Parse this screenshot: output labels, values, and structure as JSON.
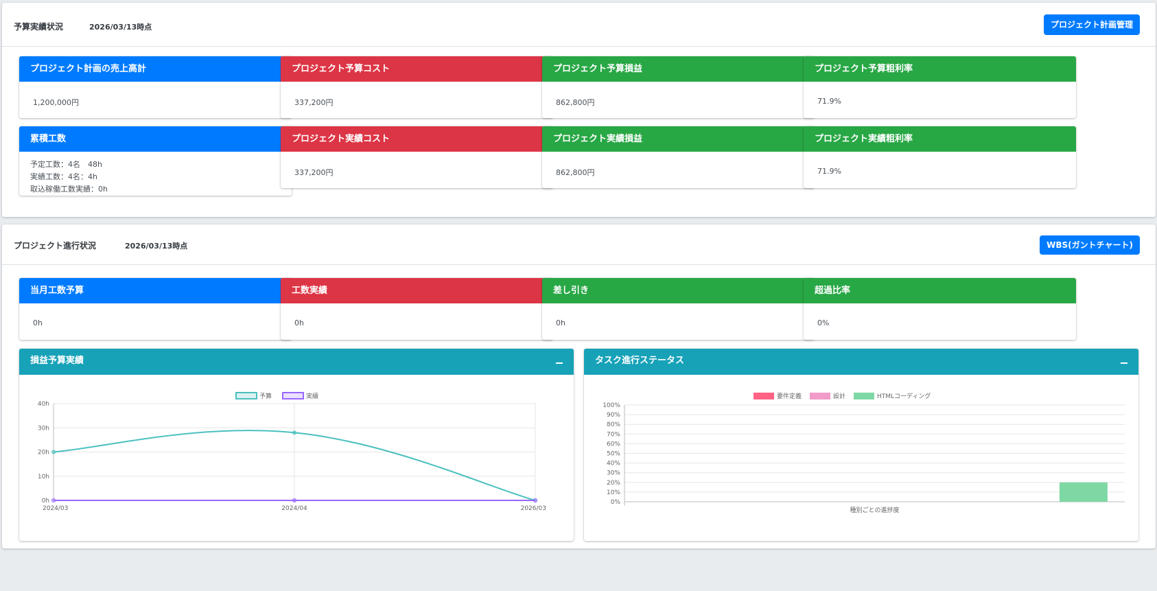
{
  "budget_section": {
    "title": "予算実績状況",
    "date": "2026/03/13時点",
    "button_label": "プロジェクト計画管理",
    "cards": [
      {
        "title": "プロジェクト計画の売上高計",
        "value": "1,200,000円",
        "color": "#007bff"
      },
      {
        "title": "プロジェクト予算コスト",
        "value": "337,200円",
        "color": "#dc3545"
      },
      {
        "title": "プロジェクト予算損益",
        "value": "862,800円",
        "color": "#28a745"
      },
      {
        "title": "プロジェクト予算粗利率",
        "value": "71.9%",
        "color": "#28a745"
      },
      {
        "title": "累積工数",
        "lines": [
          "予定工数：4名　48h",
          "実績工数：4名：4h",
          "取込稼働工数実績：0h"
        ],
        "color": "#007bff"
      },
      {
        "title": "プロジェクト実績コスト",
        "value": "337,200円",
        "color": "#dc3545"
      },
      {
        "title": "プロジェクト実績損益",
        "value": "862,800円",
        "color": "#28a745"
      },
      {
        "title": "プロジェクト実績粗利率",
        "value": "71.9%",
        "color": "#28a745"
      }
    ]
  },
  "progress_section": {
    "title": "プロジェクト進行状況",
    "date": "2026/03/13時点",
    "button_label": "WBS(ガントチャート)",
    "cards": [
      {
        "title": "当月工数予算",
        "value": "0h",
        "color": "#007bff"
      },
      {
        "title": "工数実績",
        "value": "0h",
        "color": "#dc3545"
      },
      {
        "title": "差し引き",
        "value": "0h",
        "color": "#28a745"
      },
      {
        "title": "超過比率",
        "value": "0%",
        "color": "#28a745"
      }
    ]
  },
  "charts": {
    "profit": {
      "title": "損益予算実績",
      "collapse_label": "–"
    },
    "tasks": {
      "title": "タスク進行ステータス",
      "collapse_label": "–"
    }
  },
  "chart_data": [
    {
      "type": "line",
      "x": [
        "2024/03",
        "2024/04",
        "2026/03"
      ],
      "series": [
        {
          "name": "予算",
          "values": [
            20,
            28,
            0
          ],
          "color": "#4bc0c0"
        },
        {
          "name": "実績",
          "values": [
            0,
            0,
            0
          ],
          "color": "#9966ff"
        }
      ],
      "y_ticks": [
        "0h",
        "10h",
        "20h",
        "30h",
        "40h"
      ],
      "ylim": [
        0,
        40
      ],
      "legend": "top",
      "grid": true
    },
    {
      "type": "bar",
      "series": [
        {
          "name": "要件定義",
          "values": [
            0
          ],
          "color": "#ff6384"
        },
        {
          "name": "設計",
          "values": [
            0
          ],
          "color": "#f19cc9"
        },
        {
          "name": "HTMLコーディング",
          "values": [
            20
          ],
          "color": "#7ed8a4"
        }
      ],
      "xlabel": "種別ごとの進捗度",
      "y_ticks": [
        "0%",
        "10%",
        "20%",
        "30%",
        "40%",
        "50%",
        "60%",
        "70%",
        "80%",
        "90%",
        "100%"
      ],
      "ylim": [
        0,
        100
      ],
      "legend": "top",
      "grid": true
    }
  ]
}
